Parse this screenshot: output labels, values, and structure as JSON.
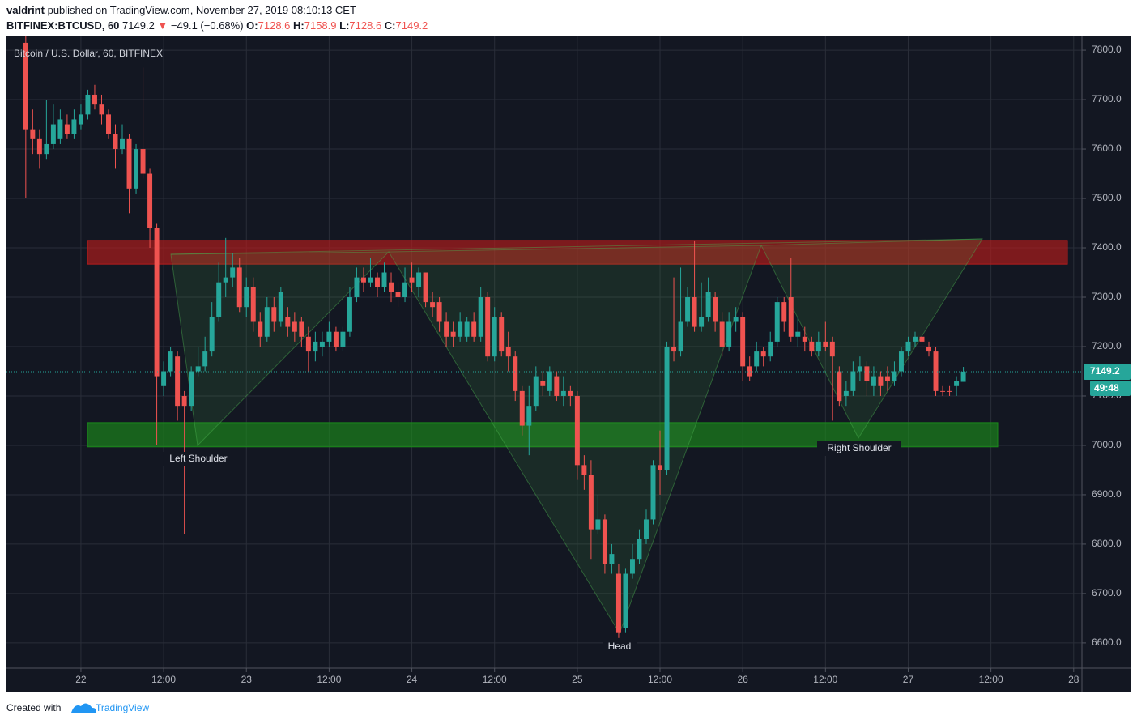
{
  "header": {
    "author": "valdrint",
    "published": "published on TradingView.com, November 27, 2019 08:10:13 CET",
    "symbol": "BITFINEX:BTCUSD, 60",
    "last": 7149.2,
    "arrow": "▼",
    "change": "−49.1 (−0.68%)",
    "ohlc": [
      {
        "label": "O:",
        "value": 7128.6
      },
      {
        "label": "H:",
        "value": 7158.9
      },
      {
        "label": "L:",
        "value": 7128.6
      },
      {
        "label": "C:",
        "value": 7149.2
      }
    ]
  },
  "footer": {
    "created": "Created with",
    "brand": "TradingView"
  },
  "chart_data": {
    "type": "candlestick",
    "legend_title": "Bitcoin / U.S. Dollar, 60, BITFINEX",
    "up_color": "#26a69a",
    "down_color": "#ef5350",
    "grid": true,
    "x": [
      -8,
      -7,
      -6,
      -5,
      -4,
      -3,
      -2,
      -1,
      0,
      1,
      2,
      3,
      4,
      5,
      6,
      7,
      8,
      9,
      10,
      11,
      12,
      13,
      14,
      15,
      16,
      17,
      18,
      19,
      20,
      21,
      22,
      23,
      24,
      25,
      26,
      27,
      28,
      29,
      30,
      31,
      32,
      33,
      34,
      35,
      36,
      37,
      38,
      39,
      40,
      41,
      42,
      43,
      44,
      45,
      46,
      47,
      48,
      49,
      50,
      51,
      52,
      53,
      54,
      55,
      56,
      57,
      58,
      59,
      60,
      61,
      62,
      63,
      64,
      65,
      66,
      67,
      68,
      69,
      70,
      71,
      72,
      73,
      74,
      75,
      76,
      77,
      78,
      79,
      80,
      81,
      82,
      83,
      84,
      85,
      86,
      87,
      88,
      89,
      90,
      91,
      92,
      93,
      94,
      95,
      96,
      97,
      98,
      99,
      100,
      101,
      102,
      103,
      104,
      105,
      106,
      107,
      108,
      109,
      110,
      111,
      112,
      113,
      114,
      115,
      116,
      117,
      118,
      119,
      120,
      121,
      122,
      123,
      124,
      125,
      126,
      127,
      128
    ],
    "open": [
      7815,
      7640,
      7620,
      7590,
      7610,
      7620,
      7650,
      7630,
      7650,
      7670,
      7710,
      7690,
      7670,
      7630,
      7600,
      7620,
      7520,
      7600,
      7550,
      7440,
      7120,
      7150,
      7180,
      7100,
      7080,
      7150,
      7160,
      7190,
      7260,
      7330,
      7340,
      7360,
      7280,
      7320,
      7250,
      7220,
      7280,
      7250,
      7260,
      7250,
      7250,
      7220,
      7190,
      7200,
      7210,
      7230,
      7200,
      7230,
      7300,
      7340,
      7330,
      7340,
      7320,
      7330,
      7310,
      7300,
      7340,
      7320,
      7350,
      7290,
      7290,
      7250,
      7230,
      7220,
      7220,
      7250,
      7220,
      7300,
      7180,
      7260,
      7200,
      7180,
      7110,
      7040,
      7080,
      7130,
      7110,
      7140,
      7100,
      7110,
      7100,
      6960,
      6940,
      6830,
      6850,
      6760,
      6740,
      6630,
      6740,
      6770,
      6810,
      6850,
      6960,
      6950,
      7200,
      7190,
      7250,
      7300,
      7240,
      7260,
      7300,
      7250,
      7200,
      7250,
      7260,
      7160,
      7160,
      7190,
      7180,
      7210,
      7290,
      7300,
      7220,
      7220,
      7210,
      7190,
      7210,
      7210,
      7150,
      7100,
      7110,
      7150,
      7160,
      7120,
      7140,
      7140,
      7130,
      7150,
      7190,
      7210,
      7220,
      7200,
      7190,
      7110,
      7110,
      7120,
      7128.6
    ],
    "high": [
      7828,
      7680,
      7640,
      7700,
      7690,
      7680,
      7670,
      7680,
      7690,
      7720,
      7730,
      7710,
      7680,
      7650,
      7650,
      7630,
      7610,
      7765,
      7560,
      7450,
      7170,
      7200,
      7190,
      7110,
      7160,
      7200,
      7220,
      7290,
      7370,
      7420,
      7390,
      7380,
      7340,
      7340,
      7270,
      7300,
      7300,
      7320,
      7280,
      7270,
      7260,
      7240,
      7230,
      7230,
      7250,
      7240,
      7240,
      7320,
      7360,
      7360,
      7380,
      7350,
      7370,
      7350,
      7330,
      7360,
      7370,
      7360,
      7350,
      7310,
      7300,
      7270,
      7250,
      7270,
      7260,
      7270,
      7320,
      7310,
      7280,
      7270,
      7230,
      7190,
      7120,
      7120,
      7160,
      7150,
      7160,
      7150,
      7140,
      7120,
      7110,
      6980,
      6970,
      6900,
      6860,
      6800,
      6760,
      6750,
      6800,
      6830,
      6870,
      6970,
      7030,
      7210,
      7340,
      7360,
      7320,
      7415,
      7330,
      7340,
      7310,
      7270,
      7270,
      7280,
      7270,
      7180,
      7210,
      7200,
      7230,
      7300,
      7300,
      7380,
      7260,
      7240,
      7220,
      7230,
      7250,
      7220,
      7160,
      7130,
      7170,
      7180,
      7170,
      7160,
      7150,
      7160,
      7170,
      7200,
      7220,
      7230,
      7230,
      7210,
      7200,
      7120,
      7120,
      7140,
      7158.9
    ],
    "low": [
      7500,
      7590,
      7560,
      7580,
      7600,
      7610,
      7620,
      7620,
      7640,
      7660,
      7680,
      7650,
      7620,
      7560,
      7590,
      7470,
      7510,
      7540,
      7400,
      7000,
      7100,
      7140,
      7050,
      6820,
      7070,
      7140,
      7150,
      7180,
      7250,
      7300,
      7320,
      7270,
      7260,
      7230,
      7200,
      7210,
      7230,
      7240,
      7220,
      7210,
      7200,
      7150,
      7170,
      7180,
      7200,
      7190,
      7190,
      7220,
      7290,
      7310,
      7320,
      7300,
      7310,
      7290,
      7280,
      7290,
      7310,
      7300,
      7280,
      7260,
      7230,
      7200,
      7200,
      7210,
      7210,
      7210,
      7210,
      7170,
      7170,
      7180,
      7150,
      7090,
      7020,
      6980,
      7070,
      7100,
      7100,
      7090,
      7080,
      7080,
      6930,
      6910,
      6770,
      6820,
      6740,
      6740,
      6610,
      6620,
      6730,
      6760,
      6800,
      6840,
      6900,
      6940,
      7170,
      7180,
      7240,
      7230,
      7230,
      7250,
      7230,
      7180,
      7190,
      7230,
      7130,
      7130,
      7150,
      7160,
      7170,
      7200,
      7230,
      7210,
      7200,
      7190,
      7180,
      7180,
      7190,
      7050,
      7080,
      7080,
      7100,
      7130,
      7100,
      7100,
      7100,
      7110,
      7120,
      7140,
      7180,
      7200,
      7190,
      7180,
      7100,
      7100,
      7100,
      7100,
      7128.6
    ],
    "close": [
      7640,
      7620,
      7590,
      7610,
      7650,
      7660,
      7630,
      7660,
      7670,
      7710,
      7690,
      7670,
      7630,
      7600,
      7620,
      7520,
      7600,
      7550,
      7440,
      7140,
      7150,
      7190,
      7080,
      7080,
      7150,
      7160,
      7190,
      7260,
      7330,
      7340,
      7360,
      7280,
      7320,
      7250,
      7220,
      7280,
      7250,
      7310,
      7240,
      7230,
      7220,
      7190,
      7210,
      7210,
      7230,
      7200,
      7230,
      7300,
      7340,
      7330,
      7340,
      7320,
      7350,
      7310,
      7300,
      7330,
      7330,
      7350,
      7290,
      7280,
      7250,
      7220,
      7220,
      7250,
      7250,
      7220,
      7300,
      7180,
      7260,
      7190,
      7180,
      7110,
      7040,
      7080,
      7140,
      7120,
      7150,
      7100,
      7110,
      7100,
      6960,
      6940,
      6830,
      6850,
      6760,
      6780,
      6620,
      6740,
      6770,
      6810,
      6850,
      6960,
      6950,
      7200,
      7190,
      7250,
      7300,
      7240,
      7260,
      7310,
      7250,
      7200,
      7250,
      7260,
      7160,
      7140,
      7190,
      7180,
      7210,
      7290,
      7250,
      7220,
      7230,
      7210,
      7190,
      7210,
      7200,
      7180,
      7090,
      7110,
      7150,
      7160,
      7130,
      7140,
      7120,
      7130,
      7150,
      7190,
      7210,
      7220,
      7210,
      7190,
      7110,
      7110,
      7110,
      7130,
      7149.2
    ],
    "xlim": [
      -10.8,
      145.2
    ],
    "xticks": [
      {
        "value": 0,
        "label": "22"
      },
      {
        "value": 12,
        "label": "12:00"
      },
      {
        "value": 24,
        "label": "23"
      },
      {
        "value": 36,
        "label": "12:00"
      },
      {
        "value": 48,
        "label": "24"
      },
      {
        "value": 60,
        "label": "12:00"
      },
      {
        "value": 72,
        "label": "25"
      },
      {
        "value": 84,
        "label": "12:00"
      },
      {
        "value": 96,
        "label": "26"
      },
      {
        "value": 108,
        "label": "12:00"
      },
      {
        "value": 120,
        "label": "27"
      },
      {
        "value": 132,
        "label": "12:00"
      },
      {
        "value": 144,
        "label": "28"
      }
    ],
    "ylim": [
      6549,
      7828
    ],
    "yticks": [
      {
        "value": 6600,
        "label": "6600.0"
      },
      {
        "value": 6700,
        "label": "6700.0"
      },
      {
        "value": 6800,
        "label": "6800.0"
      },
      {
        "value": 6900,
        "label": "6900.0"
      },
      {
        "value": 7000,
        "label": "7000.0"
      },
      {
        "value": 7100,
        "label": "7100.0"
      },
      {
        "value": 7200,
        "label": "7200.0"
      },
      {
        "value": 7300,
        "label": "7300.0"
      },
      {
        "value": 7400,
        "label": "7400.0"
      },
      {
        "value": 7500,
        "label": "7500.0"
      },
      {
        "value": 7600,
        "label": "7600.0"
      },
      {
        "value": 7700,
        "label": "7700.0"
      },
      {
        "value": 7800,
        "label": "7800.0"
      }
    ],
    "last_price": 7149.2,
    "countdown": "49:48",
    "zones": [
      {
        "from": 7367,
        "to": 7415,
        "color": "#b71c1c"
      },
      {
        "from": 6997,
        "to": 7046,
        "color": "#1b8a1b"
      }
    ],
    "annotations": [
      "Left Shoulder",
      "Head",
      "Right Shoulder"
    ]
  }
}
